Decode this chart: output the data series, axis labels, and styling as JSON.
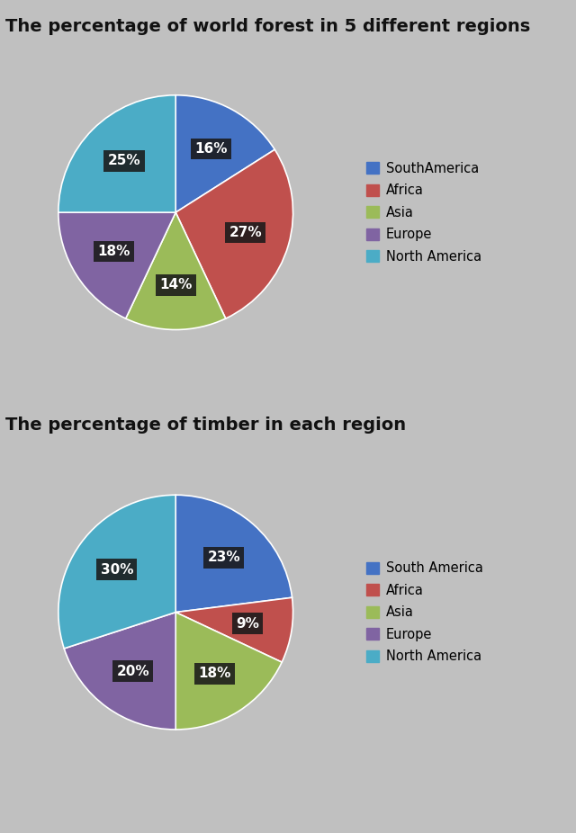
{
  "title1": "The percentage of world forest in 5 different regions",
  "title2": "The percentage of timber in each region",
  "regions1": [
    "SouthAmerica",
    "Africa",
    "Asia",
    "Europe",
    "North America"
  ],
  "regions2": [
    "South America",
    "Africa",
    "Asia",
    "Europe",
    "North America"
  ],
  "pie1_values": [
    16,
    27,
    14,
    18,
    25
  ],
  "pie2_values": [
    23,
    9,
    18,
    20,
    30
  ],
  "colors": [
    "#4472C4",
    "#C0504D",
    "#9BBB59",
    "#8064A2",
    "#4BACC6"
  ],
  "pie1_labels": [
    "16%",
    "27%",
    "14%",
    "18%",
    "25%"
  ],
  "pie2_labels": [
    "23%",
    "9%",
    "18%",
    "20%",
    "30%"
  ],
  "bg_color_top": "#C8C8C8",
  "bg_color_mid": "#B0B0B0",
  "title_fontsize": 14,
  "label_fontsize": 11
}
